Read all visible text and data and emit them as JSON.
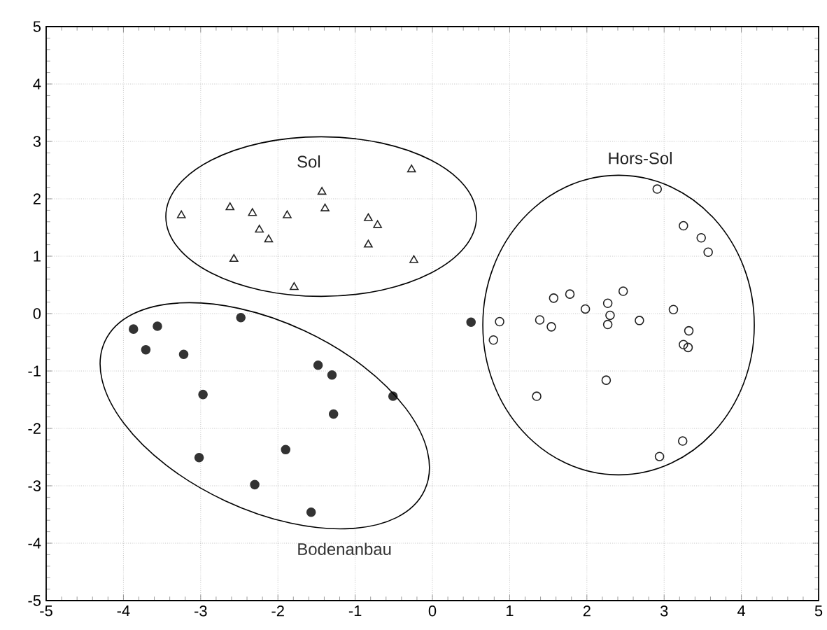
{
  "chart_data": {
    "type": "scatter",
    "xlim": [
      -5,
      5
    ],
    "ylim": [
      -5,
      5
    ],
    "xticks": [
      -5,
      -4,
      -3,
      -2,
      -1,
      0,
      1,
      2,
      3,
      4,
      5
    ],
    "yticks": [
      -5,
      -4,
      -3,
      -2,
      -1,
      0,
      1,
      2,
      3,
      4,
      5
    ],
    "grid": true,
    "legend": false,
    "series": [
      {
        "name": "Sol",
        "color": "#222222",
        "marker": "triangle",
        "x": [
          -3.25,
          -2.62,
          -2.33,
          -2.24,
          -2.12,
          -2.57,
          -1.88,
          -1.79,
          -1.43,
          -1.39,
          -0.83,
          -0.71,
          -0.83,
          -0.27,
          -0.24
        ],
        "values": [
          1.71,
          1.85,
          1.75,
          1.46,
          1.29,
          0.95,
          1.71,
          0.46,
          2.12,
          1.83,
          1.66,
          1.54,
          1.2,
          2.51,
          0.93
        ]
      },
      {
        "name": "Hors-Sol",
        "color": "#222222",
        "marker": "circle",
        "x": [
          0.87,
          0.79,
          1.39,
          1.54,
          1.57,
          1.78,
          1.98,
          2.27,
          2.3,
          2.27,
          2.47,
          2.68,
          3.12,
          3.32,
          3.25,
          3.31,
          2.25,
          1.35,
          3.24,
          2.94,
          2.91,
          3.25,
          3.48,
          3.57
        ],
        "values": [
          -0.14,
          -0.46,
          -0.11,
          -0.23,
          0.27,
          0.34,
          0.08,
          0.18,
          -0.03,
          -0.19,
          0.39,
          -0.12,
          0.07,
          -0.3,
          -0.54,
          -0.59,
          -1.16,
          -1.44,
          -2.22,
          -2.49,
          2.17,
          1.53,
          1.32,
          1.07
        ]
      },
      {
        "name": "Bodenanbau",
        "color": "#333333",
        "marker": "filled circle",
        "x": [
          -3.87,
          -3.56,
          -3.71,
          -3.22,
          -2.48,
          -2.97,
          -3.02,
          -2.3,
          -1.9,
          -1.57,
          -1.48,
          -1.3,
          -1.28,
          -0.51,
          0.5
        ],
        "values": [
          -0.27,
          -0.22,
          -0.63,
          -0.71,
          -0.07,
          -1.41,
          -2.51,
          -2.98,
          -2.37,
          -3.46,
          -0.9,
          -1.07,
          -1.75,
          -1.44,
          -0.15
        ]
      }
    ]
  }
}
